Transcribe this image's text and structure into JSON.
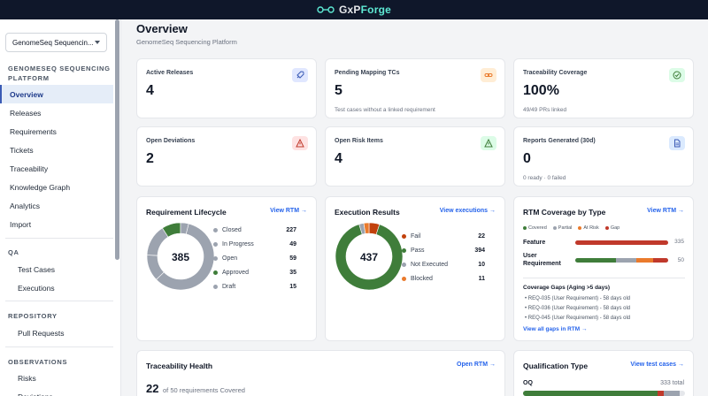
{
  "brand": {
    "prefix": "GxP",
    "suffix": "Forge"
  },
  "sidebar": {
    "project_select": "GenomeSeq Sequencin...",
    "project_section_line1": "GENOMESEQ SEQUENCING",
    "project_section_line2": "PLATFORM",
    "items": [
      "Overview",
      "Releases",
      "Requirements",
      "Tickets",
      "Traceability",
      "Knowledge Graph",
      "Analytics",
      "Import"
    ],
    "qa_title": "QA",
    "qa_items": [
      "Test Cases",
      "Executions"
    ],
    "repo_title": "REPOSITORY",
    "repo_items": [
      "Pull Requests"
    ],
    "obs_title": "OBSERVATIONS",
    "obs_items": [
      "Risks",
      "Deviations"
    ]
  },
  "header": {
    "title": "Overview",
    "subtitle": "GenomeSeq Sequencing Platform"
  },
  "kpis": {
    "active_releases": {
      "label": "Active Releases",
      "value": "4",
      "icon": "rocket-icon"
    },
    "pending_mapping": {
      "label": "Pending Mapping TCs",
      "value": "5",
      "hint": "Test cases without a linked requirement",
      "icon": "link-icon"
    },
    "trace_coverage": {
      "label": "Traceability Coverage",
      "value": "100%",
      "hint": "49/49 PRs linked",
      "icon": "check-circle-icon"
    },
    "open_deviations": {
      "label": "Open Deviations",
      "value": "2",
      "icon": "warning-icon"
    },
    "open_risks": {
      "label": "Open Risk Items",
      "value": "4",
      "icon": "warning-icon"
    },
    "reports": {
      "label": "Reports Generated (30d)",
      "value": "0",
      "hint": "0 ready · 0 failed",
      "icon": "document-icon"
    }
  },
  "req_lifecycle": {
    "title": "Requirement Lifecycle",
    "link": "View RTM →",
    "total": "385",
    "items": [
      {
        "label": "Closed",
        "value": 227,
        "color": "#9ca3af"
      },
      {
        "label": "In Progress",
        "value": 49,
        "color": "#9ca3af"
      },
      {
        "label": "Open",
        "value": 59,
        "color": "#9ca3af"
      },
      {
        "label": "Approved",
        "value": 35,
        "color": "#3f7d3a"
      },
      {
        "label": "Draft",
        "value": 15,
        "color": "#9ca3af"
      }
    ]
  },
  "exec_results": {
    "title": "Execution Results",
    "link": "View executions →",
    "total": "437",
    "items": [
      {
        "label": "Fail",
        "value": 22,
        "color": "#c2410c"
      },
      {
        "label": "Pass",
        "value": 394,
        "color": "#3f7d3a"
      },
      {
        "label": "Not Executed",
        "value": 10,
        "color": "#9ca3af"
      },
      {
        "label": "Blocked",
        "value": 11,
        "color": "#ea7a2c"
      }
    ]
  },
  "rtm_coverage": {
    "title": "RTM Coverage by Type",
    "link": "View RTM →",
    "legend": [
      {
        "label": "Covered",
        "color": "#3f7d3a"
      },
      {
        "label": "Partial",
        "color": "#9ca3af"
      },
      {
        "label": "At Risk",
        "color": "#ea7a2c"
      },
      {
        "label": "Gap",
        "color": "#c0392b"
      }
    ],
    "rows": [
      {
        "label": "Feature",
        "value": "335",
        "segments": [
          0,
          0,
          0,
          100
        ]
      },
      {
        "label": "User Requirement",
        "value": "50",
        "segments": [
          44,
          22,
          18,
          16
        ]
      }
    ],
    "gaps_title": "Coverage Gaps (Aging >5 days)",
    "gaps": [
      "• REQ-035 (User Requirement) - 58 days old",
      "• REQ-036 (User Requirement) - 58 days old",
      "• REQ-045 (User Requirement) - 58 days old"
    ],
    "gaps_link": "View all gaps in RTM →"
  },
  "trace_health": {
    "title": "Traceability Health",
    "link": "Open RTM →",
    "value": "22",
    "sub": "of 50 requirements Covered"
  },
  "qualification": {
    "title": "Qualification Type",
    "link": "View test cases →",
    "label": "OQ",
    "total": "333 total",
    "segments": [
      {
        "pct": 83,
        "color": "#3f7d3a"
      },
      {
        "pct": 4,
        "color": "#c0392b"
      },
      {
        "pct": 10,
        "color": "#9ca3af"
      }
    ]
  },
  "colors": {
    "accent": "#2563eb",
    "covered": "#3f7d3a",
    "gap": "#c0392b"
  }
}
